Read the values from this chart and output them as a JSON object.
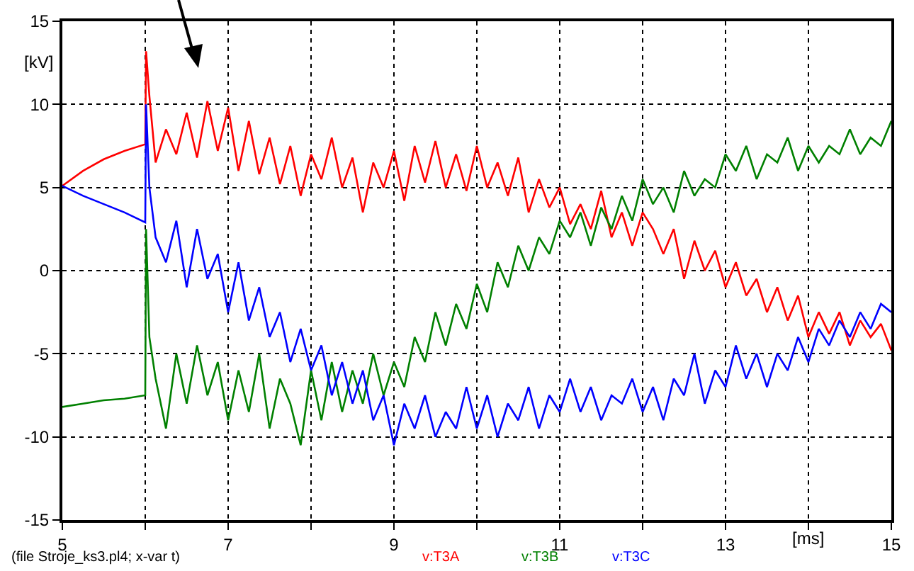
{
  "chart_data": {
    "type": "line",
    "xlabel": "[ms]",
    "ylabel": "[kV]",
    "annotations": [
      "(file Stroje_ks3.pl4; x-var t)"
    ],
    "xlim": [
      5,
      15
    ],
    "xticks": [
      5,
      {
        "value": 6,
        "label": null
      },
      7,
      {
        "value": 8,
        "label": null
      },
      9,
      {
        "value": 10,
        "label": null
      },
      11,
      {
        "value": 12,
        "label": null
      },
      13,
      {
        "value": 14,
        "label": null
      },
      15
    ],
    "ylim": [
      -15,
      15
    ],
    "yticks": [
      -15,
      -10,
      -5,
      0,
      5,
      10,
      15
    ],
    "grid": true,
    "legend": "bottom",
    "marker": "none",
    "line_style": "solid",
    "x": [
      5,
      5.25,
      5.5,
      5.75,
      6,
      6.01,
      6.05,
      6.125,
      6.25,
      6.375,
      6.5,
      6.625,
      6.75,
      6.875,
      7,
      7.125,
      7.25,
      7.375,
      7.5,
      7.625,
      7.75,
      7.875,
      8,
      8.125,
      8.25,
      8.375,
      8.5,
      8.625,
      8.75,
      8.875,
      9,
      9.125,
      9.25,
      9.375,
      9.5,
      9.625,
      9.75,
      9.875,
      10,
      10.125,
      10.25,
      10.375,
      10.5,
      10.625,
      10.75,
      10.875,
      11,
      11.125,
      11.25,
      11.375,
      11.5,
      11.625,
      11.75,
      11.875,
      12,
      12.125,
      12.25,
      12.375,
      12.5,
      12.625,
      12.75,
      12.875,
      13,
      13.125,
      13.25,
      13.375,
      13.5,
      13.625,
      13.75,
      13.875,
      14,
      14.125,
      14.25,
      14.375,
      14.5,
      14.625,
      14.75,
      14.875,
      15
    ],
    "series": [
      {
        "name": "v:T3A",
        "color": "#ff0000",
        "values": [
          5.1,
          6.0,
          6.7,
          7.2,
          7.6,
          13.2,
          10.5,
          6.5,
          8.5,
          7.0,
          9.5,
          6.8,
          10.2,
          7.2,
          9.8,
          6.0,
          9.0,
          5.8,
          8.0,
          5.2,
          7.5,
          4.5,
          7.0,
          5.5,
          8.0,
          5.0,
          6.8,
          3.5,
          6.5,
          5.0,
          7.2,
          4.2,
          7.5,
          5.3,
          7.8,
          5.0,
          7.0,
          4.8,
          7.5,
          5.0,
          6.5,
          4.5,
          6.8,
          3.5,
          5.5,
          3.8,
          5.0,
          2.8,
          4.0,
          2.5,
          4.8,
          2.0,
          3.5,
          1.5,
          3.5,
          2.5,
          1.0,
          2.5,
          -0.5,
          1.8,
          0.0,
          1.2,
          -1.0,
          0.5,
          -1.5,
          -0.5,
          -2.5,
          -1.0,
          -3.0,
          -1.5,
          -4.0,
          -2.5,
          -3.8,
          -2.5,
          -4.5,
          -3.0,
          -4.0,
          -3.2,
          -4.8
        ]
      },
      {
        "name": "v:T3B",
        "color": "#008000",
        "values": [
          -8.2,
          -8.0,
          -7.8,
          -7.7,
          -7.5,
          2.5,
          -4.0,
          -6.5,
          -9.5,
          -5.0,
          -8.0,
          -4.5,
          -7.5,
          -5.5,
          -9.0,
          -6.0,
          -8.5,
          -5.0,
          -9.5,
          -6.5,
          -8.0,
          -10.5,
          -6.0,
          -9.0,
          -5.5,
          -8.5,
          -6.0,
          -8.0,
          -5.0,
          -7.5,
          -5.5,
          -7.0,
          -4.0,
          -5.5,
          -2.5,
          -4.5,
          -2.0,
          -3.5,
          -0.8,
          -2.5,
          0.5,
          -1.0,
          1.5,
          0.0,
          2.0,
          1.0,
          3.0,
          2.0,
          3.5,
          1.5,
          3.8,
          2.5,
          4.5,
          3.0,
          5.5,
          4.0,
          5.0,
          3.5,
          6.0,
          4.5,
          5.5,
          5.0,
          7.0,
          6.0,
          7.5,
          5.5,
          7.0,
          6.5,
          8.0,
          6.0,
          7.5,
          6.5,
          7.5,
          7.0,
          8.5,
          7.0,
          8.0,
          7.5,
          9.0
        ]
      },
      {
        "name": "v:T3C",
        "color": "#0000ff",
        "values": [
          5.1,
          4.5,
          4.0,
          3.5,
          2.9,
          10.0,
          5.0,
          2.0,
          0.5,
          3.0,
          -1.0,
          2.5,
          -0.5,
          1.0,
          -2.5,
          0.5,
          -3.0,
          -1.0,
          -4.0,
          -2.5,
          -5.5,
          -3.5,
          -6.0,
          -4.5,
          -7.5,
          -5.5,
          -8.0,
          -6.0,
          -9.0,
          -7.5,
          -10.5,
          -8.0,
          -9.5,
          -7.5,
          -10.0,
          -8.5,
          -9.5,
          -7.0,
          -9.5,
          -7.5,
          -10.0,
          -8.0,
          -9.0,
          -7.0,
          -9.5,
          -7.5,
          -8.5,
          -6.5,
          -8.5,
          -7.0,
          -9.0,
          -7.5,
          -8.0,
          -6.5,
          -8.5,
          -7.0,
          -9.0,
          -6.5,
          -7.5,
          -5.0,
          -8.0,
          -6.0,
          -7.0,
          -4.5,
          -6.5,
          -5.0,
          -7.0,
          -5.0,
          -6.0,
          -4.0,
          -5.5,
          -3.5,
          -4.5,
          -3.0,
          -4.0,
          -2.5,
          -3.5,
          -2.0,
          -2.5
        ]
      }
    ]
  }
}
